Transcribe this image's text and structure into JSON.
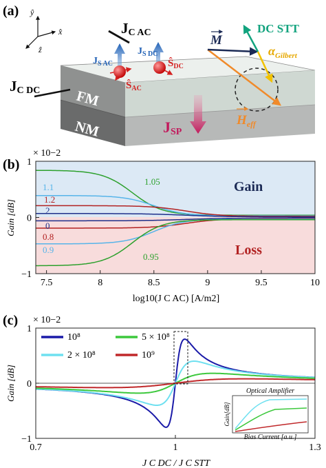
{
  "panel_a": {
    "label": "(a)",
    "axes": {
      "y": "ŷ",
      "x": "x̂",
      "z": "ẑ"
    },
    "layers": {
      "fm": "FM",
      "nm": "NM"
    },
    "jc_ac": {
      "main": "J",
      "sub": "C AC"
    },
    "jc_dc": {
      "main": "J",
      "sub": "C DC"
    },
    "js_ac": {
      "main": "J",
      "sub": "S AC"
    },
    "js_dc": {
      "main": "J",
      "sub": "S DC"
    },
    "s_ac": {
      "main": "Ŝ",
      "sub": "AC"
    },
    "s_dc": {
      "main": "Ŝ",
      "sub": "DC"
    },
    "jsp": {
      "main": "J",
      "sub": "SP"
    },
    "m": "M",
    "dc_stt": "DC STT",
    "alpha": {
      "main": "α",
      "sub": "Gilbert"
    },
    "heff": {
      "main": "H",
      "sub": "eff"
    }
  },
  "panel_b": {
    "label": "(b)",
    "gain": "Gain",
    "loss": "Loss"
  },
  "panel_c": {
    "label": "(c)",
    "inset_title": "Optical Amplifier",
    "inset_xlabel": "Bias Current [a.u.]",
    "inset_ylabel": "Gain[dB]"
  },
  "chart_data": [
    {
      "type": "line",
      "panel": "(b)",
      "multiplier": "× 10−2",
      "xlabel": "log10(J C AC) [A/m2]",
      "ylabel": "Gain [dB]",
      "xlim": [
        7.4,
        10
      ],
      "ylim": [
        -1,
        1
      ],
      "xticks": [
        7.5,
        8,
        8.5,
        9,
        9.5,
        10
      ],
      "yticks": [
        -1,
        0,
        1
      ],
      "grid": false,
      "regions": [
        {
          "name": "Gain",
          "color": "#dce9f5"
        },
        {
          "name": "Loss",
          "color": "#f8dcdc"
        }
      ],
      "series": [
        {
          "name": "1.05",
          "color": "#2ca02c",
          "x0": 0.84,
          "x1": 0.04,
          "mid": 8.3,
          "w": 0.14
        },
        {
          "name": "1.1",
          "color": "#56b4e9",
          "x0": 0.39,
          "x1": 0.03,
          "mid": 8.5,
          "w": 0.14
        },
        {
          "name": "1.2",
          "color": "#b22222",
          "x0": 0.21,
          "x1": 0.02,
          "mid": 8.8,
          "w": 0.16
        },
        {
          "name": "2",
          "color": "#1f2f8a",
          "x0": 0.07,
          "x1": 0.01,
          "mid": 8.8,
          "w": 0.2
        },
        {
          "name": "0",
          "color": "#1f2f8a",
          "x0": -0.06,
          "x1": -0.01,
          "mid": 8.8,
          "w": 0.2
        },
        {
          "name": "0.8",
          "color": "#b22222",
          "x0": -0.19,
          "x1": -0.02,
          "mid": 8.8,
          "w": 0.16
        },
        {
          "name": "0.9",
          "color": "#56b4e9",
          "x0": -0.47,
          "x1": -0.03,
          "mid": 8.5,
          "w": 0.14
        },
        {
          "name": "0.95",
          "color": "#2ca02c",
          "x0": -0.86,
          "x1": -0.04,
          "mid": 8.3,
          "w": 0.14
        }
      ]
    },
    {
      "type": "line",
      "panel": "(c)",
      "multiplier": "× 10−2",
      "xlabel": "J C DC / J C STT",
      "ylabel": "Gain [dB]",
      "xlim": [
        0.7,
        1.3
      ],
      "ylim": [
        -1,
        1
      ],
      "xticks": [
        0.7,
        1,
        1.3
      ],
      "yticks": [
        -1,
        0,
        1
      ],
      "grid": false,
      "legend": "top-left",
      "series": [
        {
          "name": "10⁸",
          "color": "#1a1aa8",
          "amp": 0.8,
          "w": 0.02
        },
        {
          "name": "2 × 10⁸",
          "color": "#6ee0f0",
          "amp": 0.4,
          "w": 0.04
        },
        {
          "name": "5 × 10⁸",
          "color": "#3cc83c",
          "amp": 0.18,
          "w": 0.08
        },
        {
          "name": "10⁹",
          "color": "#c0282a",
          "amp": 0.08,
          "w": 0.15
        }
      ]
    }
  ]
}
